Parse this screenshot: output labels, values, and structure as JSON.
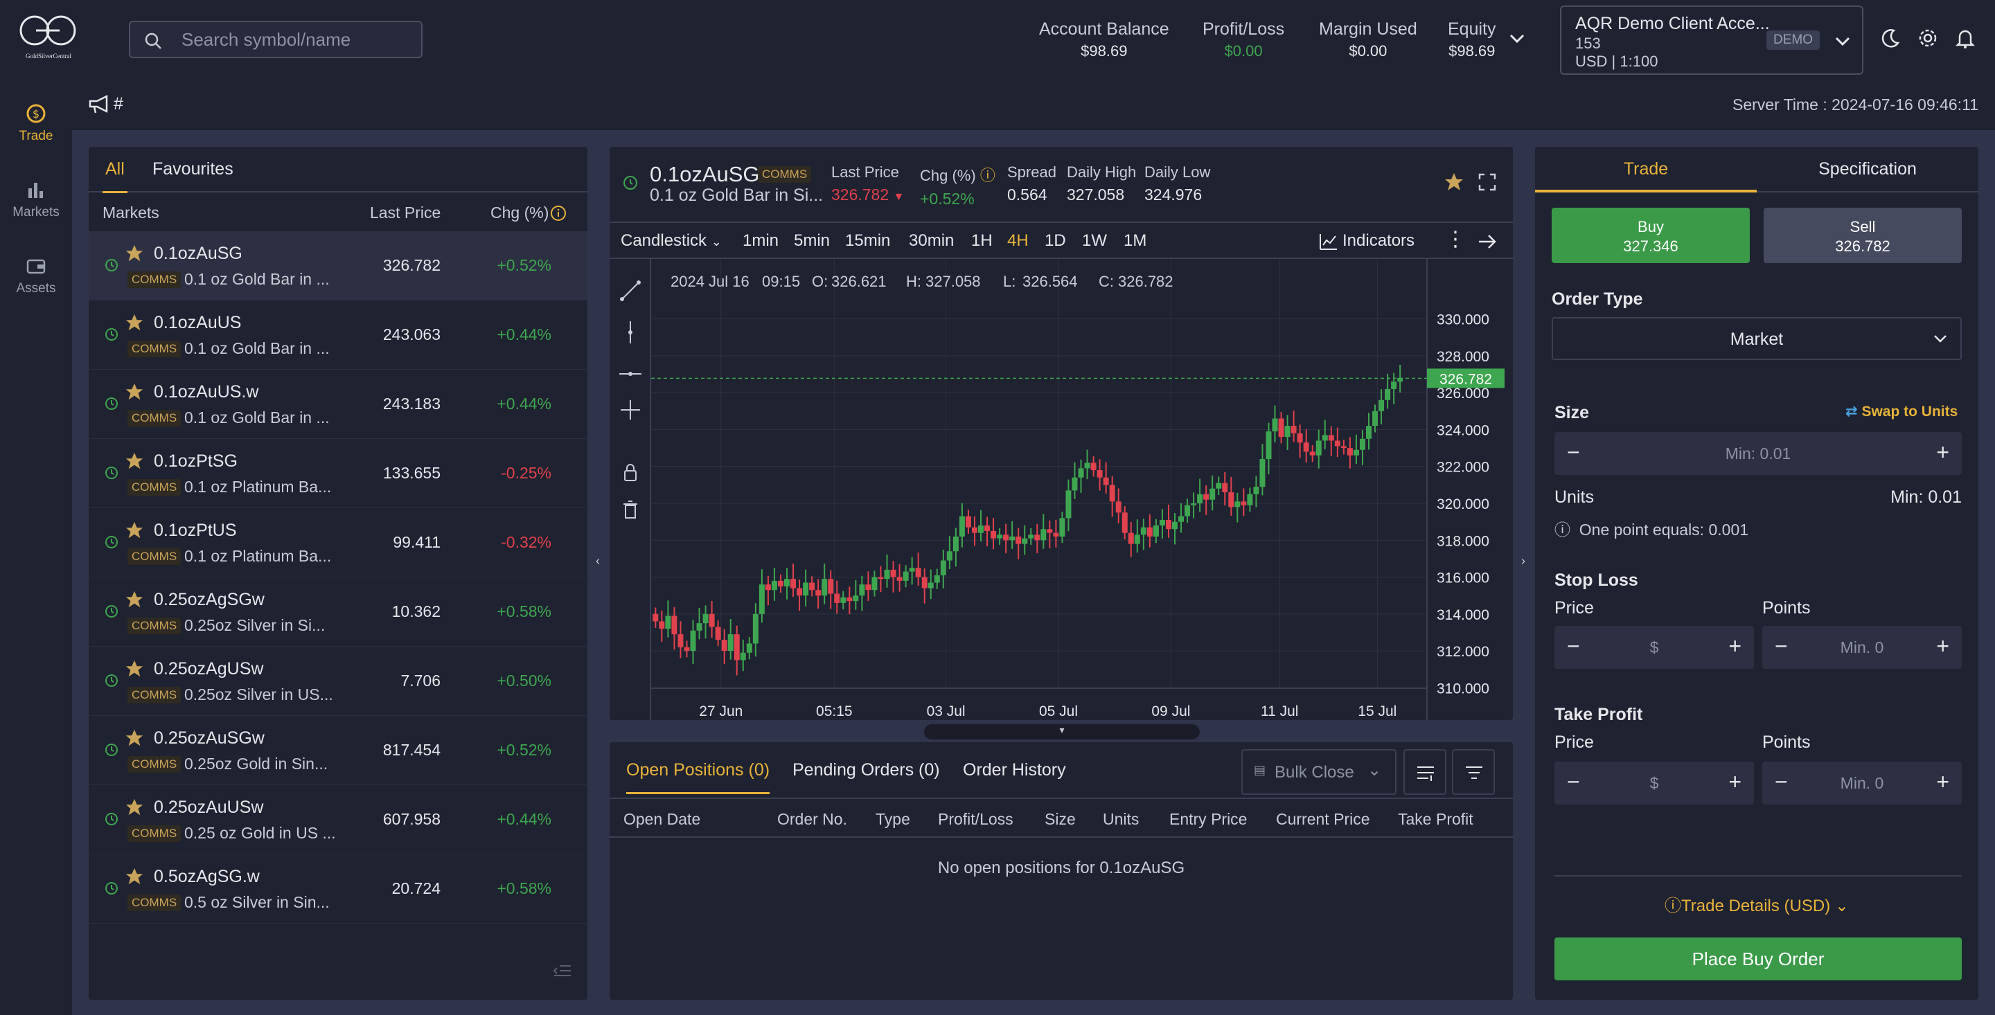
{
  "header": {
    "logo_text": "GoldSilverCentral",
    "search_placeholder": "Search symbol/name",
    "stats": [
      {
        "label": "Account Balance",
        "value": "$98.69"
      },
      {
        "label": "Profit/Loss",
        "value": "$0.00"
      },
      {
        "label": "Margin Used",
        "value": "$0.00"
      },
      {
        "label": "Equity",
        "value": "$98.69"
      }
    ],
    "account": {
      "name": "AQR Demo Client Acce...",
      "id": "153",
      "currency": "USD | 1:100",
      "badge": "DEMO"
    }
  },
  "nav": [
    {
      "label": "Trade",
      "icon": "trade-icon"
    },
    {
      "label": "Markets",
      "icon": "markets-icon"
    },
    {
      "label": "Assets",
      "icon": "wallet-icon"
    }
  ],
  "subheader": {
    "hash": "#",
    "server_time": "Server Time : 2024-07-16 09:46:11"
  },
  "markets": {
    "tabs": [
      "All",
      "Favourites"
    ],
    "columns": {
      "market": "Markets",
      "price": "Last Price",
      "chg": "Chg (%)"
    },
    "rows": [
      {
        "symbol": "0.1ozAuSG",
        "badge": "COMMS",
        "desc": "0.1 oz Gold Bar in ...",
        "price": "326.782",
        "chg": "+0.52%",
        "dir": "up"
      },
      {
        "symbol": "0.1ozAuUS",
        "badge": "COMMS",
        "desc": "0.1 oz Gold Bar in ...",
        "price": "243.063",
        "chg": "+0.44%",
        "dir": "up"
      },
      {
        "symbol": "0.1ozAuUS.w",
        "badge": "COMMS",
        "desc": "0.1 oz Gold Bar in ...",
        "price": "243.183",
        "chg": "+0.44%",
        "dir": "up"
      },
      {
        "symbol": "0.1ozPtSG",
        "badge": "COMMS",
        "desc": "0.1 oz Platinum Ba...",
        "price": "133.655",
        "chg": "-0.25%",
        "dir": "dn"
      },
      {
        "symbol": "0.1ozPtUS",
        "badge": "COMMS",
        "desc": "0.1 oz Platinum Ba...",
        "price": "99.411",
        "chg": "-0.32%",
        "dir": "dn"
      },
      {
        "symbol": "0.25ozAgSGw",
        "badge": "COMMS",
        "desc": "0.25oz Silver in Si...",
        "price": "10.362",
        "chg": "+0.58%",
        "dir": "up"
      },
      {
        "symbol": "0.25ozAgUSw",
        "badge": "COMMS",
        "desc": "0.25oz Silver in US...",
        "price": "7.706",
        "chg": "+0.50%",
        "dir": "up"
      },
      {
        "symbol": "0.25ozAuSGw",
        "badge": "COMMS",
        "desc": "0.25oz Gold in Sin...",
        "price": "817.454",
        "chg": "+0.52%",
        "dir": "up"
      },
      {
        "symbol": "0.25ozAuUSw",
        "badge": "COMMS",
        "desc": "0.25 oz Gold in US ...",
        "price": "607.958",
        "chg": "+0.44%",
        "dir": "up"
      },
      {
        "symbol": "0.5ozAgSG.w",
        "badge": "COMMS",
        "desc": "0.5 oz Silver in Sin...",
        "price": "20.724",
        "chg": "+0.58%",
        "dir": "up"
      }
    ]
  },
  "chart_header": {
    "symbol": "0.1ozAuSG",
    "badge": "COMMS",
    "desc": "0.1 oz Gold Bar in Si...",
    "last_price_label": "Last Price",
    "last_price": "326.782",
    "chg_label": "Chg (%)",
    "chg": "+0.52%",
    "spread_label": "Spread",
    "spread": "0.564",
    "high_label": "Daily High",
    "high": "327.058",
    "low_label": "Daily Low",
    "low": "324.976"
  },
  "chart_toolbar": {
    "type": "Candlestick",
    "timeframes": [
      "1min",
      "5min",
      "15min",
      "30min",
      "1H",
      "4H",
      "1D",
      "1W",
      "1M"
    ],
    "active_timeframe": "4H",
    "indicators": "Indicators"
  },
  "chart_data": {
    "type": "candlestick",
    "ohlc_readout": {
      "date": "2024 Jul 16",
      "time": "09:15",
      "O": "326.621",
      "H": "327.058",
      "L": "326.564",
      "C": "326.782"
    },
    "last_price_tag": "326.782",
    "last_price": 326.782,
    "ylim": [
      309,
      331
    ],
    "y_ticks": [
      "310.000",
      "312.000",
      "314.000",
      "316.000",
      "318.000",
      "320.000",
      "322.000",
      "324.000",
      "326.000",
      "328.000",
      "330.000"
    ],
    "x_ticks": [
      "27 Jun",
      "05:15",
      "03 Jul",
      "05 Jul",
      "09 Jul",
      "11 Jul",
      "15 Jul"
    ],
    "colors": {
      "up": "#3ea650",
      "down": "#e0424e"
    },
    "closes": [
      313.6,
      313.2,
      313.9,
      312.9,
      312.2,
      312.0,
      313.1,
      313.5,
      314.0,
      313.3,
      312.6,
      312.0,
      312.9,
      311.5,
      311.9,
      312.4,
      314.0,
      315.6,
      315.3,
      315.8,
      315.5,
      315.9,
      315.4,
      315.0,
      315.7,
      315.3,
      315.0,
      315.9,
      315.1,
      314.6,
      314.9,
      314.7,
      315.0,
      315.6,
      315.3,
      316.0,
      315.9,
      316.4,
      316.0,
      315.8,
      316.3,
      316.5,
      316.0,
      315.4,
      315.7,
      316.1,
      316.9,
      317.4,
      318.2,
      319.3,
      318.7,
      318.4,
      318.8,
      318.5,
      318.1,
      318.3,
      318.0,
      318.2,
      317.8,
      318.1,
      318.3,
      318.0,
      318.6,
      318.4,
      318.2,
      319.2,
      320.7,
      321.4,
      321.9,
      322.2,
      321.8,
      321.4,
      321.0,
      320.1,
      319.5,
      318.4,
      317.8,
      318.3,
      318.7,
      318.2,
      318.8,
      319.1,
      318.6,
      319.0,
      319.3,
      319.9,
      320.0,
      320.5,
      320.2,
      320.8,
      321.1,
      320.6,
      319.8,
      320.1,
      319.9,
      320.5,
      320.9,
      322.4,
      323.9,
      324.6,
      323.6,
      324.2,
      323.8,
      323.3,
      322.8,
      322.6,
      323.4,
      323.7,
      323.4,
      323.1,
      323.0,
      322.6,
      322.9,
      323.5,
      324.2,
      325.0,
      325.6,
      326.2,
      326.6,
      326.8
    ]
  },
  "positions": {
    "tabs": [
      "Open Positions (0)",
      "Pending Orders (0)",
      "Order History"
    ],
    "bulk": "Bulk Close",
    "columns": [
      "Open Date",
      "Order No.",
      "Type",
      "Profit/Loss",
      "Size",
      "Units",
      "Entry Price",
      "Current Price",
      "Take Profit"
    ],
    "empty": "No open positions for 0.1ozAuSG"
  },
  "trade": {
    "tabs": [
      "Trade",
      "Specification"
    ],
    "buy_label": "Buy",
    "buy_price": "327.346",
    "sell_label": "Sell",
    "sell_price": "326.782",
    "order_type_label": "Order Type",
    "order_type": "Market",
    "size_label": "Size",
    "swap": "Swap to Units",
    "size_placeholder": "Min: 0.01",
    "units_label": "Units",
    "units_min": "Min: 0.01",
    "point_info": "One point equals: 0.001",
    "stop_loss": "Stop Loss",
    "take_profit": "Take Profit",
    "price_label": "Price",
    "points_label": "Points",
    "price_placeholder": "$",
    "points_placeholder": "Min. 0",
    "details": "Trade Details (USD)",
    "place": "Place Buy Order"
  }
}
